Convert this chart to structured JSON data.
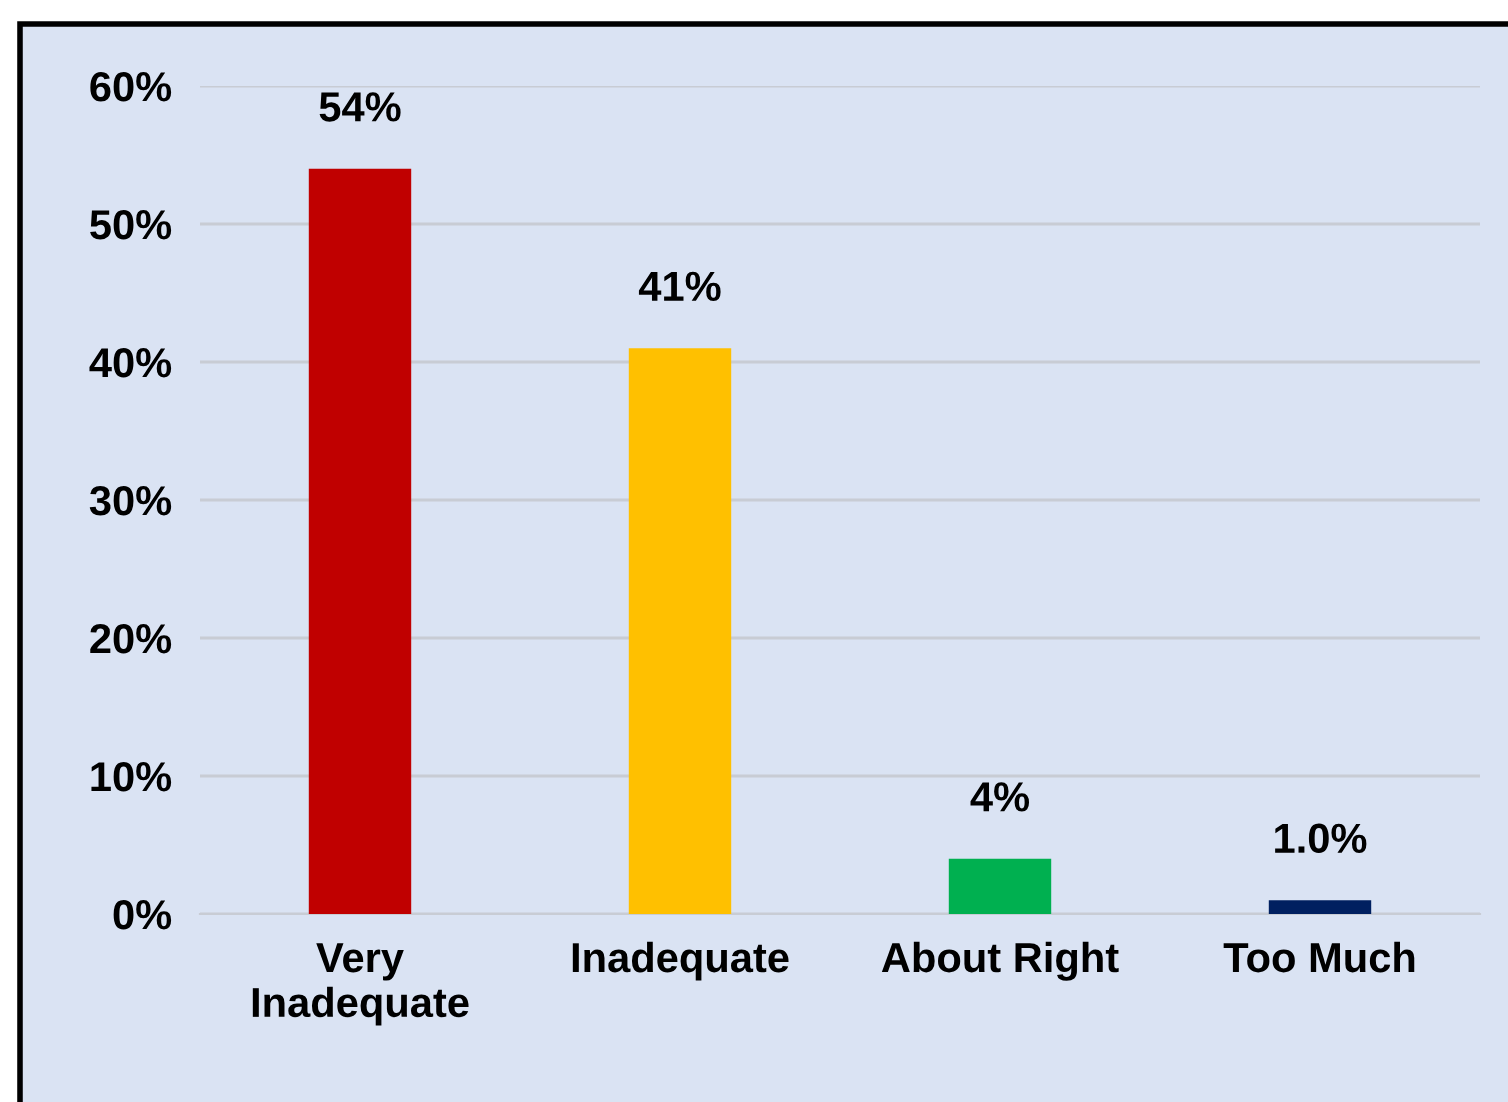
{
  "chart_data": {
    "type": "bar",
    "categories": [
      "Very\nInadequate",
      "Inadequate",
      "About Right",
      "Too Much"
    ],
    "values": [
      54,
      41,
      4,
      1.0
    ],
    "colors": [
      "#c00000",
      "#ffc000",
      "#00b050",
      "#002060"
    ],
    "value_labels": [
      "54%",
      "41%",
      "4%",
      "1.0%"
    ],
    "ylim": [
      0,
      60
    ],
    "yticks": [
      {
        "value": 0,
        "label": "0%"
      },
      {
        "value": 10,
        "label": "10%"
      },
      {
        "value": 20,
        "label": "20%"
      },
      {
        "value": 30,
        "label": "30%"
      },
      {
        "value": 40,
        "label": "40%"
      },
      {
        "value": 50,
        "label": "50%"
      },
      {
        "value": 60,
        "label": "60%"
      }
    ],
    "grid": "y",
    "legend": false
  }
}
